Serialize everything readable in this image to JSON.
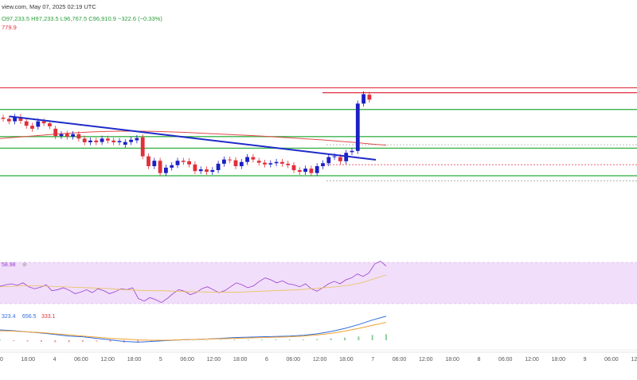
{
  "header": {
    "source_date": "view.com, May 07, 2025 02:19 UTC",
    "ohlc": "O97,233.5  H97,233.5  L96,767.5  C96,910.9  −322.6 (−0.33%)",
    "price_fragment": "779.9"
  },
  "indicators": {
    "rsi_value": "58.98",
    "rsi_symbol": "⊘",
    "macd_values": [
      "323.4",
      "656.5",
      "333.1"
    ]
  },
  "colors": {
    "up": "#1b1fc4",
    "down": "#e0303a",
    "trendline": "#1e2bc8",
    "ma": "#e04a4a",
    "support": "#3cb34a",
    "resistance": "#e03040",
    "rsi_band": "#f1defa",
    "rsi_line": "#9a3fd0",
    "macd_line": "#2f6bdf",
    "signal_line": "#f0a030"
  },
  "chart_data": {
    "type": "candlestick",
    "x_tick_labels": [
      "0",
      "18:00",
      "4",
      "06:00",
      "12:00",
      "18:00",
      "5",
      "06:00",
      "12:00",
      "18:00",
      "6",
      "06:00",
      "12:00",
      "18:00",
      "7",
      "06:00",
      "12:00",
      "18:00",
      "8",
      "06:00",
      "12:00",
      "18:00",
      "9",
      "06:00",
      "12:00"
    ],
    "candles": [
      {
        "o": 0.555,
        "c": 0.55
      },
      {
        "o": 0.55,
        "c": 0.54
      },
      {
        "o": 0.54,
        "c": 0.558
      },
      {
        "o": 0.558,
        "c": 0.542
      },
      {
        "o": 0.54,
        "c": 0.522
      },
      {
        "o": 0.522,
        "c": 0.51
      },
      {
        "o": 0.518,
        "c": 0.54
      },
      {
        "o": 0.54,
        "c": 0.532
      },
      {
        "o": 0.532,
        "c": 0.52
      },
      {
        "o": 0.51,
        "c": 0.48
      },
      {
        "o": 0.48,
        "c": 0.488
      },
      {
        "o": 0.49,
        "c": 0.478
      },
      {
        "o": 0.478,
        "c": 0.488
      },
      {
        "o": 0.488,
        "c": 0.47
      },
      {
        "o": 0.47,
        "c": 0.455
      },
      {
        "o": 0.455,
        "c": 0.462
      },
      {
        "o": 0.462,
        "c": 0.455
      },
      {
        "o": 0.456,
        "c": 0.47
      },
      {
        "o": 0.47,
        "c": 0.462
      },
      {
        "o": 0.462,
        "c": 0.455
      },
      {
        "o": 0.455,
        "c": 0.46
      },
      {
        "o": 0.445,
        "c": 0.456
      },
      {
        "o": 0.456,
        "c": 0.465
      },
      {
        "o": 0.463,
        "c": 0.472
      },
      {
        "o": 0.475,
        "c": 0.398
      },
      {
        "o": 0.398,
        "c": 0.358
      },
      {
        "o": 0.358,
        "c": 0.38
      },
      {
        "o": 0.38,
        "c": 0.33
      },
      {
        "o": 0.33,
        "c": 0.352
      },
      {
        "o": 0.352,
        "c": 0.362
      },
      {
        "o": 0.362,
        "c": 0.38
      },
      {
        "o": 0.38,
        "c": 0.375
      },
      {
        "o": 0.378,
        "c": 0.365
      },
      {
        "o": 0.365,
        "c": 0.338
      },
      {
        "o": 0.338,
        "c": 0.345
      },
      {
        "o": 0.345,
        "c": 0.335
      },
      {
        "o": 0.335,
        "c": 0.342
      },
      {
        "o": 0.342,
        "c": 0.368
      },
      {
        "o": 0.368,
        "c": 0.385
      },
      {
        "o": 0.385,
        "c": 0.382
      },
      {
        "o": 0.382,
        "c": 0.358
      },
      {
        "o": 0.358,
        "c": 0.375
      },
      {
        "o": 0.375,
        "c": 0.395
      },
      {
        "o": 0.395,
        "c": 0.385
      },
      {
        "o": 0.38,
        "c": 0.372
      },
      {
        "o": 0.372,
        "c": 0.365
      },
      {
        "o": 0.365,
        "c": 0.37
      },
      {
        "o": 0.37,
        "c": 0.375
      },
      {
        "o": 0.375,
        "c": 0.368
      },
      {
        "o": 0.368,
        "c": 0.362
      },
      {
        "o": 0.362,
        "c": 0.342
      },
      {
        "o": 0.342,
        "c": 0.335
      },
      {
        "o": 0.335,
        "c": 0.348
      },
      {
        "o": 0.348,
        "c": 0.33
      },
      {
        "o": 0.33,
        "c": 0.358
      },
      {
        "o": 0.358,
        "c": 0.37
      },
      {
        "o": 0.37,
        "c": 0.395
      },
      {
        "o": 0.395,
        "c": 0.398
      },
      {
        "o": 0.395,
        "c": 0.378
      },
      {
        "o": 0.378,
        "c": 0.412
      },
      {
        "o": 0.415,
        "c": 0.42
      },
      {
        "o": 0.42,
        "c": 0.612
      },
      {
        "o": 0.612,
        "c": 0.65
      },
      {
        "o": 0.648,
        "c": 0.628
      }
    ],
    "moving_average": [
      0.47,
      0.475,
      0.48,
      0.485,
      0.49,
      0.494,
      0.497,
      0.499,
      0.5,
      0.5,
      0.499,
      0.497,
      0.495,
      0.492,
      0.489,
      0.486,
      0.483,
      0.48,
      0.476,
      0.472,
      0.468,
      0.464,
      0.459,
      0.454,
      0.448,
      0.443
    ],
    "trendline": [
      [
        0,
        0.56
      ],
      [
        1,
        0.384
      ]
    ],
    "support_levels": [
      0.588,
      0.478,
      0.431,
      0.319
    ],
    "resistance_levels": [
      0.676,
      0.656
    ],
    "dashed_levels": [
      0.445,
      0.364,
      0.298
    ],
    "rsi": [
      0.45,
      0.48,
      0.5,
      0.47,
      0.52,
      0.44,
      0.4,
      0.43,
      0.48,
      0.36,
      0.38,
      0.42,
      0.37,
      0.3,
      0.33,
      0.38,
      0.32,
      0.4,
      0.36,
      0.3,
      0.34,
      0.4,
      0.38,
      0.42,
      0.2,
      0.15,
      0.22,
      0.18,
      0.12,
      0.2,
      0.3,
      0.38,
      0.35,
      0.28,
      0.32,
      0.4,
      0.44,
      0.38,
      0.32,
      0.36,
      0.44,
      0.52,
      0.48,
      0.42,
      0.46,
      0.55,
      0.62,
      0.58,
      0.52,
      0.56,
      0.5,
      0.48,
      0.44,
      0.5,
      0.4,
      0.35,
      0.42,
      0.5,
      0.55,
      0.5,
      0.58,
      0.62,
      0.7,
      0.65,
      0.72,
      0.9,
      0.96,
      0.86
    ],
    "rsi_ma": [
      0.44,
      0.45,
      0.46,
      0.46,
      0.45,
      0.44,
      0.43,
      0.42,
      0.41,
      0.4,
      0.38,
      0.37,
      0.36,
      0.36,
      0.35,
      0.34,
      0.34,
      0.33,
      0.33,
      0.33,
      0.34,
      0.35,
      0.36,
      0.37,
      0.38,
      0.4,
      0.42,
      0.44,
      0.47,
      0.52,
      0.6,
      0.68
    ],
    "macd_line": [
      0.52,
      0.5,
      0.47,
      0.44,
      0.4,
      0.36,
      0.34,
      0.3,
      0.26,
      0.22,
      0.2,
      0.22,
      0.24,
      0.26,
      0.27,
      0.28,
      0.3,
      0.32,
      0.33,
      0.34,
      0.35,
      0.36,
      0.38,
      0.42,
      0.48,
      0.56,
      0.66,
      0.78,
      0.88
    ],
    "signal_line": [
      0.5,
      0.49,
      0.47,
      0.45,
      0.42,
      0.39,
      0.36,
      0.33,
      0.3,
      0.28,
      0.26,
      0.25,
      0.25,
      0.26,
      0.27,
      0.28,
      0.29,
      0.3,
      0.31,
      0.32,
      0.33,
      0.34,
      0.36,
      0.39,
      0.43,
      0.49,
      0.56,
      0.64,
      0.72
    ],
    "histogram": [
      0.02,
      -0.02,
      -0.03,
      -0.04,
      -0.05,
      -0.05,
      -0.04,
      -0.03,
      -0.04,
      -0.06,
      -0.06,
      -0.03,
      -0.01,
      0.0,
      0.0,
      0.0,
      0.01,
      0.02,
      0.02,
      0.02,
      0.02,
      0.02,
      0.02,
      0.03,
      0.05,
      0.07,
      0.1,
      0.14,
      0.16
    ]
  }
}
